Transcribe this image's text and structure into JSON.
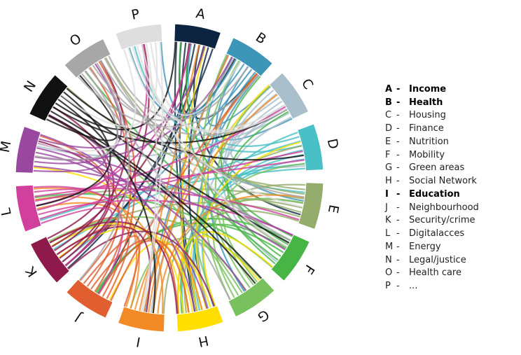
{
  "segments": [
    {
      "code": "A",
      "color": "#0d2440"
    },
    {
      "code": "B",
      "color": "#3d95b8"
    },
    {
      "code": "C",
      "color": "#a9bfcb"
    },
    {
      "code": "D",
      "color": "#49c0c6"
    },
    {
      "code": "E",
      "color": "#94ad6c"
    },
    {
      "code": "F",
      "color": "#46b545"
    },
    {
      "code": "G",
      "color": "#79c05e"
    },
    {
      "code": "H",
      "color": "#ffde00"
    },
    {
      "code": "I",
      "color": "#f28a25"
    },
    {
      "code": "J",
      "color": "#e15e30"
    },
    {
      "code": "K",
      "color": "#8d1a4b"
    },
    {
      "code": "L",
      "color": "#d1409c"
    },
    {
      "code": "M",
      "color": "#9a47a0"
    },
    {
      "code": "N",
      "color": "#111111"
    },
    {
      "code": "O",
      "color": "#a7a7a7"
    },
    {
      "code": "P",
      "color": "#dedede"
    }
  ],
  "legend": [
    {
      "code": "A",
      "label": "Income",
      "bold": true
    },
    {
      "code": "B",
      "label": "Health",
      "bold": true
    },
    {
      "code": "C",
      "label": "Housing",
      "bold": false
    },
    {
      "code": "D",
      "label": "Finance",
      "bold": false
    },
    {
      "code": "E",
      "label": "Nutrition",
      "bold": false
    },
    {
      "code": "F",
      "label": "Mobility",
      "bold": false
    },
    {
      "code": "G",
      "label": "Green areas",
      "bold": false
    },
    {
      "code": "H",
      "label": "Social Network",
      "bold": false
    },
    {
      "code": "I",
      "label": "Education",
      "bold": true
    },
    {
      "code": "J",
      "label": "Neighbourhood",
      "bold": false
    },
    {
      "code": "K",
      "label": "Security/crime",
      "bold": false
    },
    {
      "code": "L",
      "label": "Digitalacces",
      "bold": false
    },
    {
      "code": "M",
      "label": "Energy",
      "bold": false
    },
    {
      "code": "N",
      "label": "Legal/justice",
      "bold": false
    },
    {
      "code": "O",
      "label": "Health care",
      "bold": false
    },
    {
      "code": "P",
      "label": "...",
      "bold": false
    }
  ],
  "legend_dash": "-"
}
